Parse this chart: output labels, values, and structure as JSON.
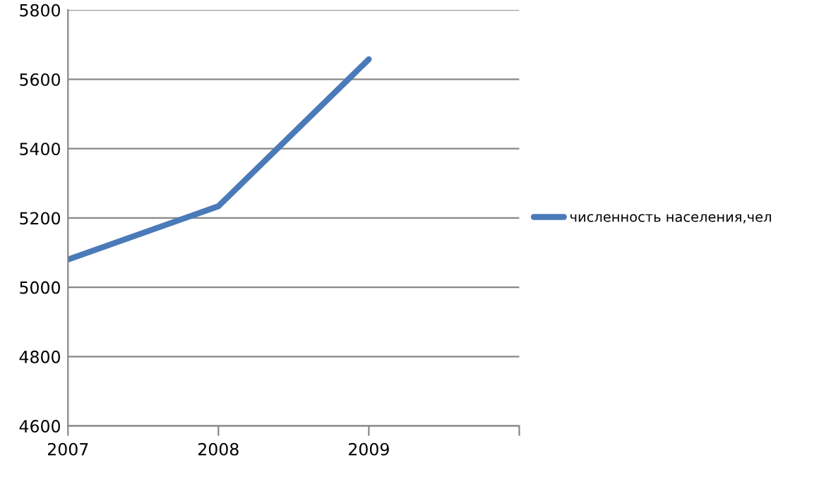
{
  "chart_data": {
    "type": "line",
    "x": [
      2007,
      2008,
      2009
    ],
    "series": [
      {
        "name": "численность населения,чел",
        "color": "#4a7ab8",
        "values": [
          5080,
          5234,
          5658
        ]
      }
    ],
    "xlim": [
      2007,
      2010
    ],
    "xticks": [
      2007,
      2008,
      2009,
      {
        "value": 2010,
        "label": null
      }
    ],
    "ylim": [
      4600,
      5800
    ],
    "yticks": [
      4600,
      4800,
      5000,
      5200,
      5400,
      5600,
      5800
    ],
    "grid": "y",
    "legend": "right",
    "marker": "none",
    "line_style": "solid"
  }
}
